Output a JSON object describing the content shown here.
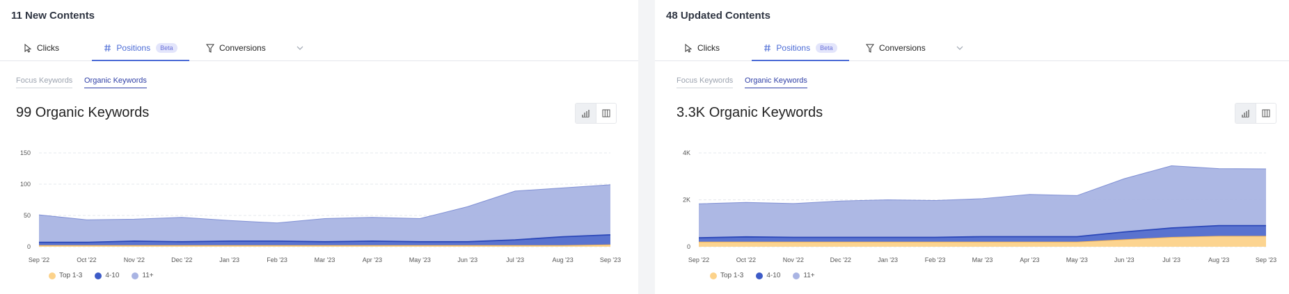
{
  "colors": {
    "top": "#fcd28a",
    "mid": "#3d5bc7",
    "eleven": "#a9b4e3",
    "accent": "#4b6bd6"
  },
  "panels": [
    {
      "title": "11 New Contents",
      "tabs": [
        {
          "label": "Clicks"
        },
        {
          "label": "Positions",
          "badge": "Beta"
        },
        {
          "label": "Conversions"
        }
      ],
      "subtabs": [
        "Focus Keywords",
        "Organic Keywords"
      ],
      "heading": "99 Organic Keywords",
      "chart_data": {
        "type": "area",
        "stacked": true,
        "categories": [
          "Sep '22",
          "Oct '22",
          "Nov '22",
          "Dec '22",
          "Jan '23",
          "Feb '23",
          "Mar '23",
          "Apr '23",
          "May '23",
          "Jun '23",
          "Jul '23",
          "Aug '23",
          "Sep '23"
        ],
        "yticks": [
          0,
          50,
          100,
          150
        ],
        "ylim": [
          0,
          150
        ],
        "grid": true,
        "legend_position": "bottom-left",
        "series": [
          {
            "name": "Top 1-3",
            "values": [
              2,
              2,
              2,
              2,
              2,
              2,
              2,
              2,
              2,
              2,
              2,
              2,
              3
            ]
          },
          {
            "name": "4-10",
            "values": [
              5,
              5,
              7,
              6,
              7,
              7,
              6,
              7,
              6,
              6,
              9,
              14,
              16
            ]
          },
          {
            "name": "11+",
            "values": [
              44,
              36,
              35,
              39,
              33,
              29,
              37,
              38,
              37,
              56,
              78,
              78,
              80
            ]
          }
        ]
      }
    },
    {
      "title": "48 Updated Contents",
      "tabs": [
        {
          "label": "Clicks"
        },
        {
          "label": "Positions",
          "badge": "Beta"
        },
        {
          "label": "Conversions"
        }
      ],
      "subtabs": [
        "Focus Keywords",
        "Organic Keywords"
      ],
      "heading": "3.3K Organic Keywords",
      "chart_data": {
        "type": "area",
        "stacked": true,
        "categories": [
          "Sep '22",
          "Oct '22",
          "Nov '22",
          "Dec '22",
          "Jan '23",
          "Feb '23",
          "Mar '23",
          "Apr '23",
          "May '23",
          "Jun '23",
          "Jul '23",
          "Aug '23",
          "Sep '23"
        ],
        "yticks": [
          "0",
          "2K",
          "4K"
        ],
        "ytick_values": [
          0,
          2000,
          4000
        ],
        "ylim": [
          0,
          4000
        ],
        "grid": true,
        "legend_position": "bottom-left",
        "series": [
          {
            "name": "Top 1-3",
            "values": [
              200,
              200,
              200,
              200,
              200,
              200,
              200,
              200,
              200,
              300,
              400,
              450,
              450
            ]
          },
          {
            "name": "4-10",
            "values": [
              180,
              220,
              200,
              200,
              200,
              200,
              230,
              230,
              230,
              330,
              400,
              450,
              450
            ]
          },
          {
            "name": "11+",
            "values": [
              1450,
              1470,
              1440,
              1550,
              1600,
              1570,
              1620,
              1800,
              1750,
              2270,
              2650,
              2430,
              2420
            ]
          }
        ]
      }
    }
  ]
}
